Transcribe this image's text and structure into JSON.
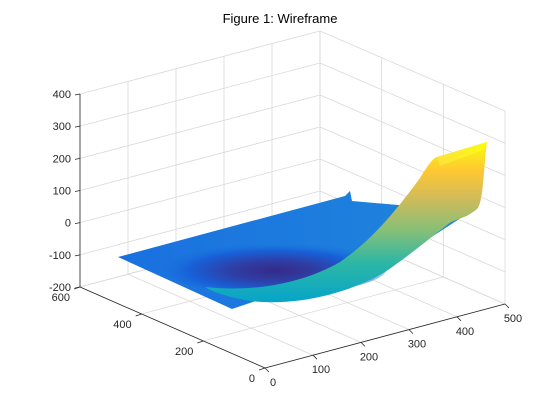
{
  "chart_data": {
    "type": "surface",
    "title": "Figure 1: Wireframe",
    "xlabel": "",
    "ylabel": "",
    "zlabel": "",
    "x_ticks": [
      0,
      100,
      200,
      300,
      400,
      500
    ],
    "y_ticks": [
      0,
      200,
      400,
      600
    ],
    "z_ticks": [
      -200,
      -100,
      0,
      100,
      200,
      300,
      400
    ],
    "xlim": [
      0,
      500
    ],
    "ylim": [
      0,
      600
    ],
    "zlim": [
      -200,
      400
    ],
    "grid": true,
    "colormap": "parula",
    "surface": {
      "description_values": {
        "x_range": [
          0,
          470
        ],
        "y_range": [
          0,
          470
        ],
        "z_min": -150,
        "z_max": 250
      },
      "samples": [
        {
          "x": 0,
          "y": 470,
          "z": -100
        },
        {
          "x": 470,
          "y": 470,
          "z": -10
        },
        {
          "x": 0,
          "y": 0,
          "z": -120
        },
        {
          "x": 250,
          "y": 250,
          "z": -150
        },
        {
          "x": 350,
          "y": 0,
          "z": -60
        },
        {
          "x": 470,
          "y": 0,
          "z": 60
        },
        {
          "x": 470,
          "y": 100,
          "z": 250
        },
        {
          "x": 400,
          "y": 100,
          "z": 0
        }
      ]
    }
  },
  "colors": {
    "colormap_stops": [
      "#352a87",
      "#0f5cdd",
      "#1481d6",
      "#06a4ca",
      "#2eb7a4",
      "#87bf77",
      "#d1bb59",
      "#fec832",
      "#f9fb0e"
    ]
  }
}
